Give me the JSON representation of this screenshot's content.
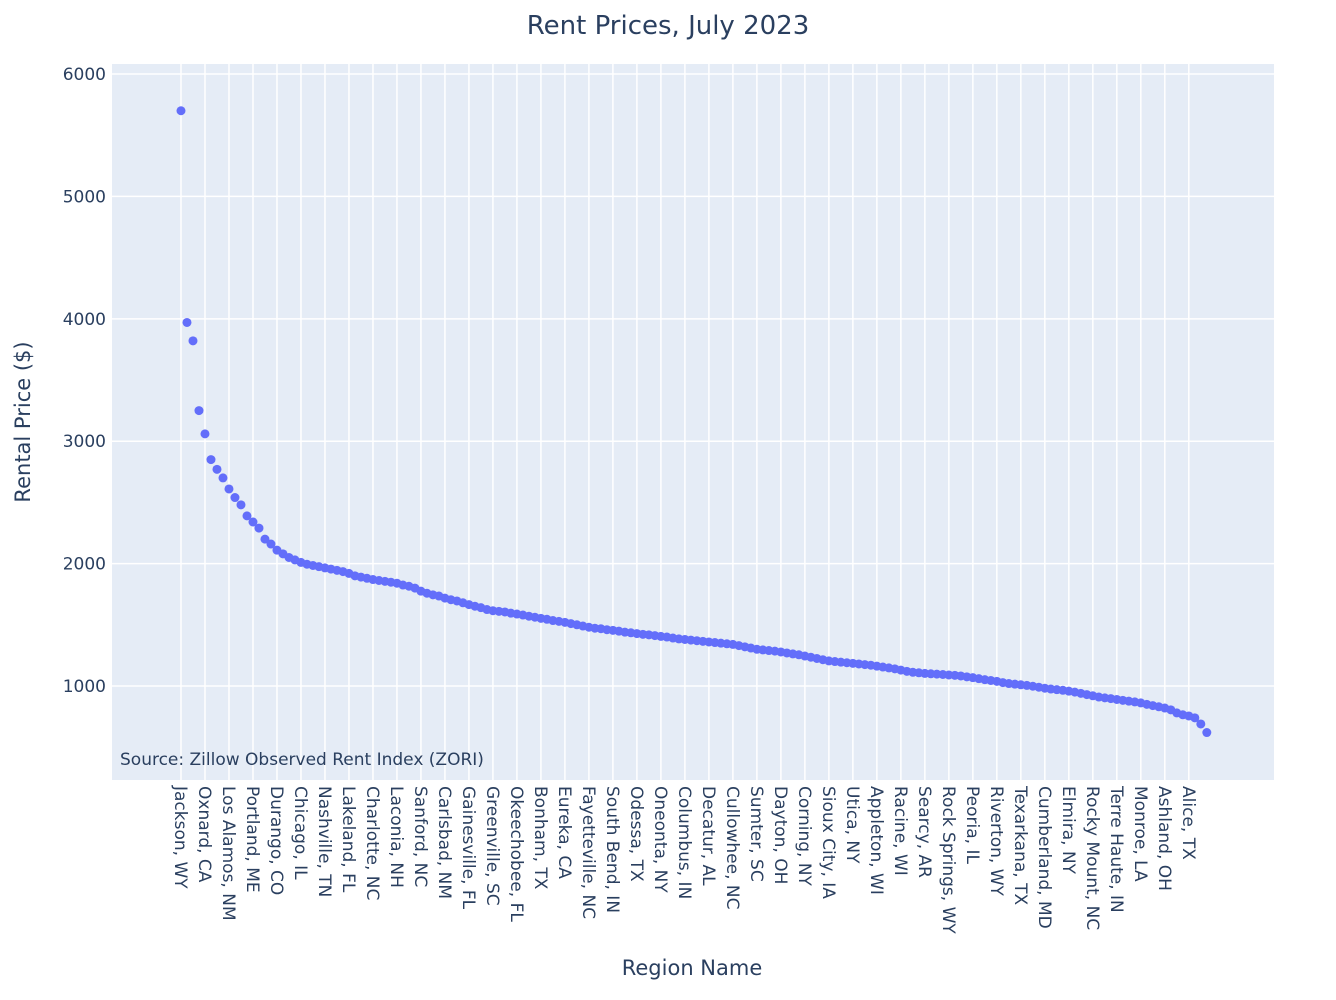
{
  "chart_data": {
    "type": "scatter",
    "title": "Rent Prices, July 2023",
    "x_label": "Region Name",
    "y_label": "Rental Price ($)",
    "annotation": "Source: Zillow Observed Rent Index (ZORI)",
    "color": "#636efa",
    "grid": true,
    "ylim": [
      232,
      6082
    ],
    "yticks": [
      1000,
      2000,
      3000,
      4000,
      5000,
      6000
    ],
    "xlim": [
      -11.5,
      182.2
    ],
    "categories": [
      "Jackson, WY",
      null,
      null,
      null,
      "Oxnard, CA",
      null,
      null,
      null,
      "Los Alamos, NM",
      null,
      null,
      null,
      "Portland, ME",
      null,
      null,
      null,
      "Durango, CO",
      null,
      null,
      null,
      "Chicago, IL",
      null,
      null,
      null,
      "Nashville, TN",
      null,
      null,
      null,
      "Lakeland, FL",
      null,
      null,
      null,
      "Charlotte, NC",
      null,
      null,
      null,
      "Laconia, NH",
      null,
      null,
      null,
      "Sanford, NC",
      null,
      null,
      null,
      "Carlsbad, NM",
      null,
      null,
      null,
      "Gainesville, FL",
      null,
      null,
      null,
      "Greenville, SC",
      null,
      null,
      null,
      "Okeechobee, FL",
      null,
      null,
      null,
      "Bonham, TX",
      null,
      null,
      null,
      "Eureka, CA",
      null,
      null,
      null,
      "Fayetteville, NC",
      null,
      null,
      null,
      "South Bend, IN",
      null,
      null,
      null,
      "Odessa, TX",
      null,
      null,
      null,
      "Oneonta, NY",
      null,
      null,
      null,
      "Columbus, IN",
      null,
      null,
      null,
      "Decatur, AL",
      null,
      null,
      null,
      "Cullowhee, NC",
      null,
      null,
      null,
      "Sumter, SC",
      null,
      null,
      null,
      "Dayton, OH",
      null,
      null,
      null,
      "Corning, NY",
      null,
      null,
      null,
      "Sioux City, IA",
      null,
      null,
      null,
      "Utica, NY",
      null,
      null,
      null,
      "Appleton, WI",
      null,
      null,
      null,
      "Racine, WI",
      null,
      null,
      null,
      "Searcy, AR",
      null,
      null,
      null,
      "Rock Springs, WY",
      null,
      null,
      null,
      "Peoria, IL",
      null,
      null,
      null,
      "Riverton, WY",
      null,
      null,
      null,
      "Texarkana, TX",
      null,
      null,
      null,
      "Cumberland, MD",
      null,
      null,
      null,
      "Elmira, NY",
      null,
      null,
      null,
      "Rocky Mount, NC",
      null,
      null,
      null,
      "Terre Haute, IN",
      null,
      null,
      null,
      "Monroe, LA",
      null,
      null,
      null,
      "Ashland, OH",
      null,
      null,
      null,
      "Alice, TX",
      null,
      null,
      null
    ],
    "values": [
      5700,
      3970,
      3820,
      3250,
      3060,
      2850,
      2770,
      2700,
      2610,
      2540,
      2480,
      2390,
      2340,
      2290,
      2200,
      2160,
      2110,
      2080,
      2050,
      2030,
      2010,
      1995,
      1985,
      1975,
      1965,
      1955,
      1945,
      1935,
      1920,
      1900,
      1890,
      1880,
      1870,
      1862,
      1855,
      1848,
      1840,
      1825,
      1815,
      1800,
      1775,
      1758,
      1745,
      1735,
      1718,
      1705,
      1695,
      1680,
      1665,
      1652,
      1640,
      1625,
      1615,
      1610,
      1605,
      1595,
      1588,
      1580,
      1570,
      1562,
      1553,
      1545,
      1535,
      1528,
      1520,
      1510,
      1500,
      1490,
      1480,
      1472,
      1468,
      1460,
      1455,
      1448,
      1440,
      1435,
      1428,
      1422,
      1418,
      1412,
      1405,
      1400,
      1392,
      1385,
      1380,
      1375,
      1370,
      1365,
      1360,
      1355,
      1350,
      1345,
      1340,
      1330,
      1320,
      1310,
      1300,
      1295,
      1290,
      1285,
      1278,
      1270,
      1262,
      1255,
      1245,
      1235,
      1225,
      1215,
      1205,
      1200,
      1195,
      1190,
      1185,
      1180,
      1175,
      1170,
      1162,
      1155,
      1148,
      1140,
      1130,
      1120,
      1112,
      1108,
      1103,
      1100,
      1097,
      1094,
      1090,
      1087,
      1082,
      1075,
      1068,
      1060,
      1052,
      1045,
      1038,
      1028,
      1020,
      1015,
      1010,
      1005,
      998,
      990,
      982,
      975,
      970,
      965,
      958,
      950,
      940,
      930,
      920,
      910,
      903,
      897,
      890,
      883,
      876,
      870,
      862,
      850,
      840,
      830,
      820,
      805,
      780,
      765,
      755,
      740,
      690,
      620
    ]
  }
}
